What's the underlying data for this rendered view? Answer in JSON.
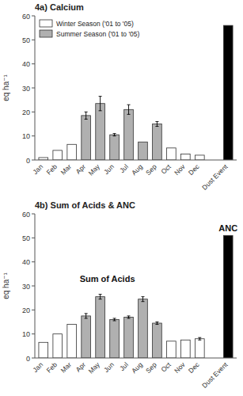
{
  "chart_data": [
    {
      "type": "bar",
      "title": "4a) Calcium",
      "y_label": "eq ha⁻¹",
      "ylim": [
        0,
        60
      ],
      "yticks": [
        0,
        10,
        20,
        30,
        40,
        50,
        60
      ],
      "grid": false,
      "legend": "upper left",
      "categories": [
        "Jan",
        "Feb",
        "Mar",
        "Apr",
        "May",
        "Jun",
        "Jul",
        "Aug",
        "Sep",
        "Oct",
        "Nov",
        "Dec",
        null,
        "Dust Event"
      ],
      "series": [
        {
          "name": "Winter Season ('01 to '05)",
          "color": "white",
          "values": [
            1.0,
            4.0,
            6.5,
            null,
            null,
            null,
            null,
            null,
            null,
            5.0,
            2.5,
            2.0,
            null,
            null
          ],
          "errors": [
            0.0,
            0.0,
            0.0,
            null,
            null,
            null,
            null,
            null,
            null,
            0.0,
            0.0,
            0.0,
            null,
            null
          ]
        },
        {
          "name": "Summer Season ('01 to '05)",
          "color": "#b0b0b0",
          "values": [
            null,
            null,
            null,
            18.5,
            23.5,
            10.5,
            21.0,
            7.5,
            15.0,
            null,
            null,
            null,
            null,
            null
          ],
          "errors": [
            null,
            null,
            null,
            1.5,
            3.0,
            0.5,
            2.0,
            0.0,
            1.0,
            null,
            null,
            null,
            null,
            null
          ]
        },
        {
          "color": "black",
          "values": [
            null,
            null,
            null,
            null,
            null,
            null,
            null,
            null,
            null,
            null,
            null,
            null,
            null,
            56.0
          ]
        }
      ]
    },
    {
      "type": "bar",
      "title": "4b) Sum of Acids & ANC",
      "y_label": "eq ha⁻¹",
      "ylim": [
        0,
        60
      ],
      "yticks": [
        0,
        10,
        20,
        30,
        40,
        50,
        60
      ],
      "grid": false,
      "categories": [
        "Jan",
        "Feb",
        "Mar",
        "Apr",
        "May",
        "Jun",
        "Jul",
        "Aug",
        "Sep",
        "Oct",
        "Nov",
        "Dec",
        null,
        "Dust Event"
      ],
      "series": [
        {
          "color": "white",
          "values": [
            6.5,
            10.0,
            14.0,
            null,
            null,
            null,
            null,
            null,
            null,
            7.0,
            7.5,
            8.0,
            null,
            null
          ],
          "errors": [
            0.0,
            0.0,
            0.0,
            null,
            null,
            null,
            null,
            null,
            null,
            0.0,
            0.0,
            0.5,
            null,
            null
          ]
        },
        {
          "color": "#b0b0b0",
          "values": [
            null,
            null,
            null,
            17.5,
            25.5,
            16.0,
            17.0,
            24.5,
            14.5,
            null,
            null,
            null,
            null,
            null
          ],
          "errors": [
            null,
            null,
            null,
            1.0,
            1.0,
            0.5,
            0.5,
            1.0,
            0.5,
            null,
            null,
            null,
            null,
            null
          ]
        },
        {
          "color": "black",
          "values": [
            null,
            null,
            null,
            null,
            null,
            null,
            null,
            null,
            null,
            null,
            null,
            null,
            null,
            51.0
          ]
        }
      ],
      "annotations": [
        {
          "text": "Sum of Acids",
          "x": 4.5,
          "y": 31.0
        },
        {
          "text": "ANC",
          "x": 13,
          "y": 52.0
        }
      ]
    }
  ]
}
